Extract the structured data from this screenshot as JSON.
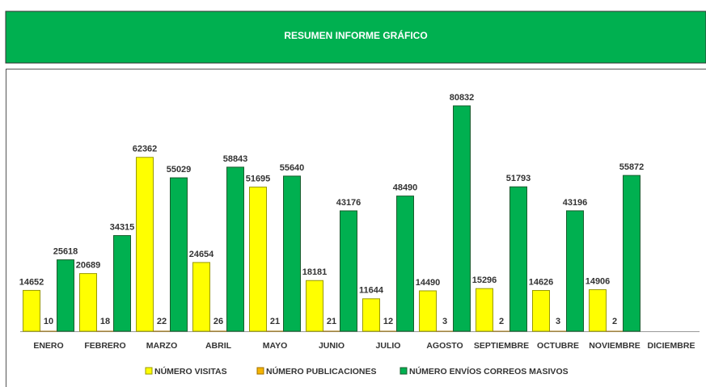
{
  "chart_data": {
    "type": "bar",
    "title": "RESUMEN INFORME GRÁFICO",
    "categories": [
      "ENERO",
      "FEBRERO",
      "MARZO",
      "ABRIL",
      "MAYO",
      "JUNIO",
      "JULIO",
      "AGOSTO",
      "SEPTIEMBRE",
      "OCTUBRE",
      "NOVIEMBRE",
      "DICIEMBRE"
    ],
    "series": [
      {
        "name": "NÚMERO VISITAS",
        "color": "#ffff00",
        "values": [
          14652,
          20689,
          62362,
          24654,
          51695,
          18181,
          11644,
          14490,
          15296,
          14626,
          14906,
          null
        ]
      },
      {
        "name": "NÚMERO PUBLICACIONES",
        "color": "#f5b400",
        "values": [
          10,
          18,
          22,
          26,
          21,
          21,
          12,
          3,
          2,
          3,
          2,
          null
        ]
      },
      {
        "name": "NÚMERO ENVÍOS CORREOS MASIVOS",
        "color": "#00b050",
        "values": [
          25618,
          34315,
          55029,
          58843,
          55640,
          43176,
          48490,
          80832,
          51793,
          43196,
          55872,
          null
        ]
      }
    ],
    "legend": "bottom"
  }
}
